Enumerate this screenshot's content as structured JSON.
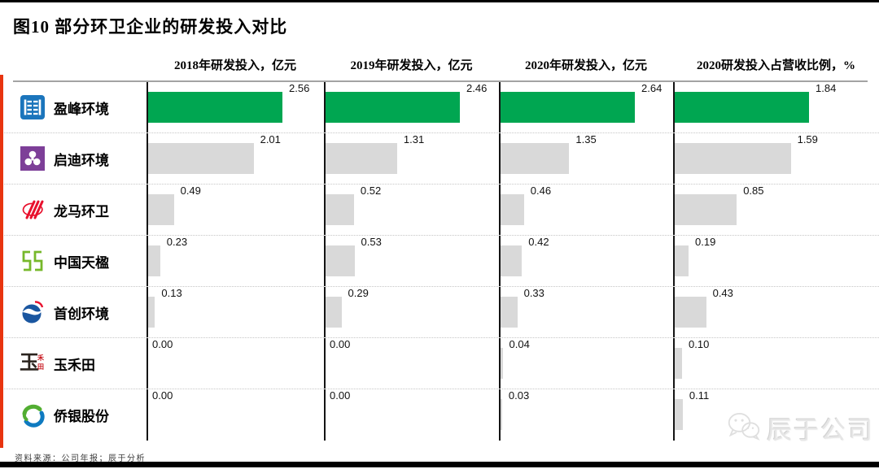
{
  "page": {
    "title": "图10   部分环卫企业的研发投入对比",
    "source_note": "资料来源：公司年报；辰于分析",
    "watermark_text": "辰于公司",
    "watermark_icon": "wechat-icon"
  },
  "chart_data": {
    "type": "bar",
    "orientation": "horizontal",
    "title": "部分环卫企业的研发投入对比",
    "figure_label": "图10",
    "highlight_category": "盈峰环境",
    "colors": {
      "highlight_bar": "#00a651",
      "default_bar": "#d9d9d9",
      "axis": "#141414",
      "accent_stripe": "#e8340f"
    },
    "layout": {
      "value_labels": "right-of-bar",
      "grid": "dotted-row-separators",
      "each_column_scaled_to_own_max": true
    },
    "categories": [
      {
        "name": "盈峰环境",
        "logo": "yingfeng-logo-icon"
      },
      {
        "name": "启迪环境",
        "logo": "qidi-logo-icon"
      },
      {
        "name": "龙马环卫",
        "logo": "longma-logo-icon"
      },
      {
        "name": "中国天楹",
        "logo": "tianying-logo-icon"
      },
      {
        "name": "首创环境",
        "logo": "shouchuang-logo-icon"
      },
      {
        "name": "玉禾田",
        "logo": "yuhetian-logo-icon"
      },
      {
        "name": "侨银股份",
        "logo": "qiaoyin-logo-icon"
      }
    ],
    "columns": [
      {
        "header": "2018年研发投入，亿元",
        "values": [
          2.56,
          2.01,
          0.49,
          0.23,
          0.13,
          0.0,
          0.0
        ]
      },
      {
        "header": "2019年研发投入，亿元",
        "values": [
          2.46,
          1.31,
          0.52,
          0.53,
          0.29,
          0.0,
          0.0
        ]
      },
      {
        "header": "2020年研发投入，亿元",
        "values": [
          2.64,
          1.35,
          0.46,
          0.42,
          0.33,
          0.04,
          0.03
        ]
      },
      {
        "header": "2020研发投入占营收比例，%",
        "values": [
          1.84,
          1.59,
          0.85,
          0.19,
          0.43,
          0.1,
          0.11
        ]
      }
    ]
  }
}
